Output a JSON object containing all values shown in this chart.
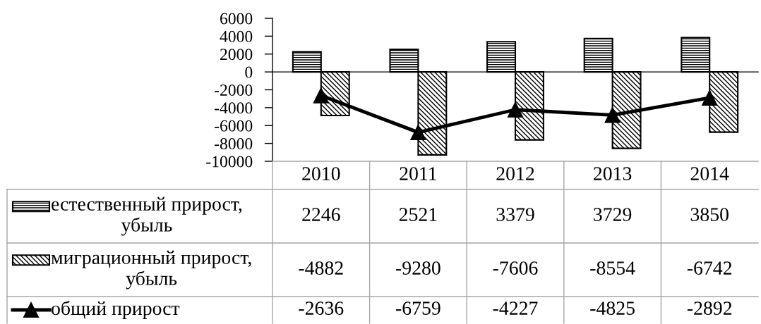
{
  "chart_data": {
    "type": "bar",
    "categories": [
      "2010",
      "2011",
      "2012",
      "2013",
      "2014"
    ],
    "series": [
      {
        "name": "естественный прирост, убыль",
        "color": "#000000",
        "values": [
          2246,
          2521,
          3379,
          3729,
          3850
        ]
      },
      {
        "name": "миграционный прирост, убыль",
        "color": "#000000",
        "values": [
          -4882,
          -9280,
          -7606,
          -8554,
          -6742
        ]
      },
      {
        "name": "общий прирост",
        "type": "line",
        "color": "#000000",
        "marker": "triangle",
        "values": [
          -2636,
          -6759,
          -4227,
          -4825,
          -2892
        ]
      }
    ],
    "ylim": [
      -10000,
      6000
    ],
    "yticks": [
      -10000,
      -8000,
      -6000,
      -4000,
      -2000,
      0,
      2000,
      4000,
      6000
    ],
    "data_labels": true,
    "legend": "bottom"
  }
}
